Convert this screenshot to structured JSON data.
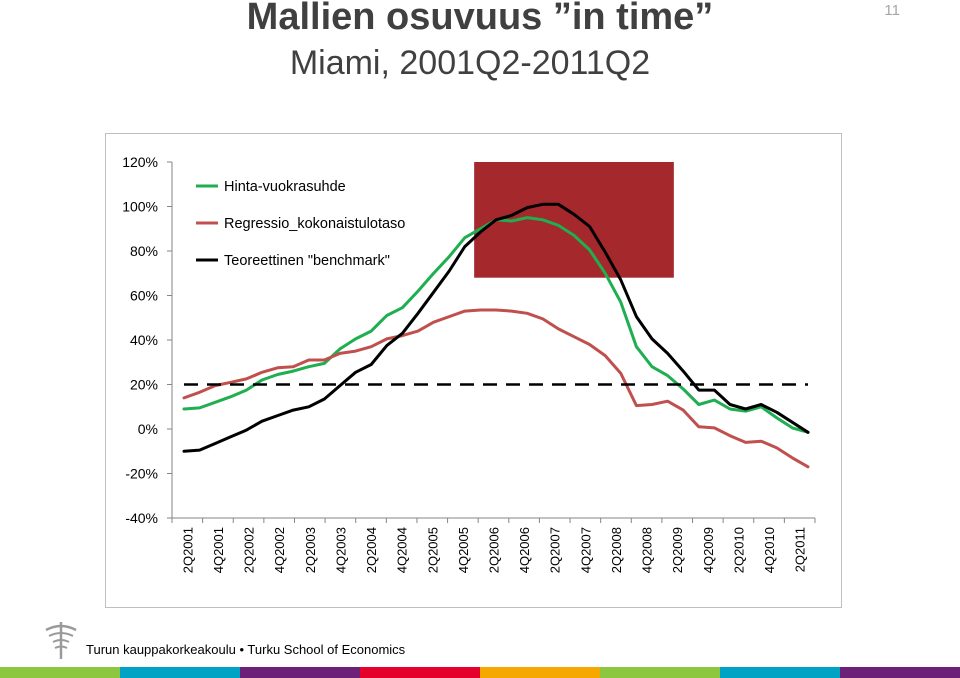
{
  "header": {
    "title": "Mallien osuvuus ”in time”",
    "subtitle": "Miami, 2001Q2-2011Q2",
    "page_number": "11"
  },
  "footer": {
    "text_left": "Turun kauppakorkeakoulu",
    "separator": "•",
    "text_right": "Turku School of Economics",
    "stripe_colors": [
      "#8dc63f",
      "#00a3c4",
      "#6d2077",
      "#e4002b",
      "#f7a800",
      "#8dc63f",
      "#00a3c4",
      "#6d2077"
    ]
  },
  "chart_data": {
    "type": "line",
    "title": "",
    "xlabel": "",
    "ylabel": "",
    "ylim": [
      -40,
      120
    ],
    "y_ticks": [
      "120%",
      "100%",
      "80%",
      "60%",
      "40%",
      "20%",
      "0%",
      "-20%",
      "-40%"
    ],
    "y_tick_values": [
      120,
      100,
      80,
      60,
      40,
      20,
      0,
      -20,
      -40
    ],
    "x_tick_labels": [
      "2Q2001",
      "4Q2001",
      "2Q2002",
      "4Q2002",
      "2Q2003",
      "4Q2003",
      "2Q2004",
      "4Q2004",
      "2Q2005",
      "4Q2005",
      "2Q2006",
      "4Q2006",
      "2Q2007",
      "4Q2007",
      "2Q2008",
      "4Q2008",
      "2Q2009",
      "4Q2009",
      "2Q2010",
      "4Q2010",
      "2Q2011"
    ],
    "highlight": {
      "x_start": 2005.9,
      "x_end": 2009.1,
      "y_low": 68,
      "y_high": 120,
      "color": "#a4282c"
    },
    "legend_position": "top-left",
    "series": [
      {
        "name": "Hinta-vuokrasuhde",
        "color": "#1fae50",
        "dash": false,
        "values": [
          9,
          9.5,
          12,
          14.5,
          17.5,
          22,
          24.5,
          26,
          28,
          29.5,
          36,
          40.5,
          44,
          51,
          54.5,
          62,
          70,
          77.5,
          86,
          90,
          94,
          93.5,
          95,
          94,
          91.5,
          87,
          80.5,
          70,
          57,
          37,
          28,
          24,
          18,
          11,
          13,
          9,
          8,
          10,
          5,
          0.5,
          -1.5
        ]
      },
      {
        "name": "Regressio_kokonaistulotaso",
        "color": "#c0504d",
        "dash": false,
        "values": [
          14,
          16.5,
          19.5,
          21,
          22.5,
          25.5,
          27.5,
          28,
          31,
          31,
          34,
          35,
          37,
          40.5,
          42,
          44,
          48,
          50.5,
          53,
          53.5,
          53.5,
          53,
          52,
          49.5,
          45,
          41.5,
          38,
          33,
          25,
          10.5,
          11,
          12.5,
          8.5,
          1,
          0.5,
          -3,
          -6,
          -5.5,
          -8.5,
          -13,
          -17
        ]
      },
      {
        "name": "Teoreettinen \"benchmark\"",
        "color": "#000000",
        "dash": false,
        "values": [
          -10,
          -9.5,
          -6.5,
          -3.5,
          -0.5,
          3.5,
          6,
          8.5,
          10,
          13.5,
          19.5,
          25.5,
          29,
          37.5,
          43,
          52,
          61.5,
          71,
          82,
          88.5,
          94,
          96,
          99.5,
          101,
          101,
          96.5,
          91,
          79.5,
          67,
          50.5,
          40.5,
          34,
          26,
          17.5,
          17.5,
          11,
          9,
          11,
          7.5,
          3,
          -1.5
        ]
      },
      {
        "name": "",
        "color": "#000000",
        "dash": true,
        "values": [
          20,
          20,
          20,
          20,
          20,
          20,
          20,
          20,
          20,
          20,
          20,
          20,
          20,
          20,
          20,
          20,
          20,
          20,
          20,
          20,
          20,
          20,
          20,
          20,
          20,
          20,
          20,
          20,
          20,
          20,
          20,
          20,
          20,
          20,
          20,
          20,
          20,
          20,
          20,
          20,
          20
        ]
      }
    ]
  }
}
